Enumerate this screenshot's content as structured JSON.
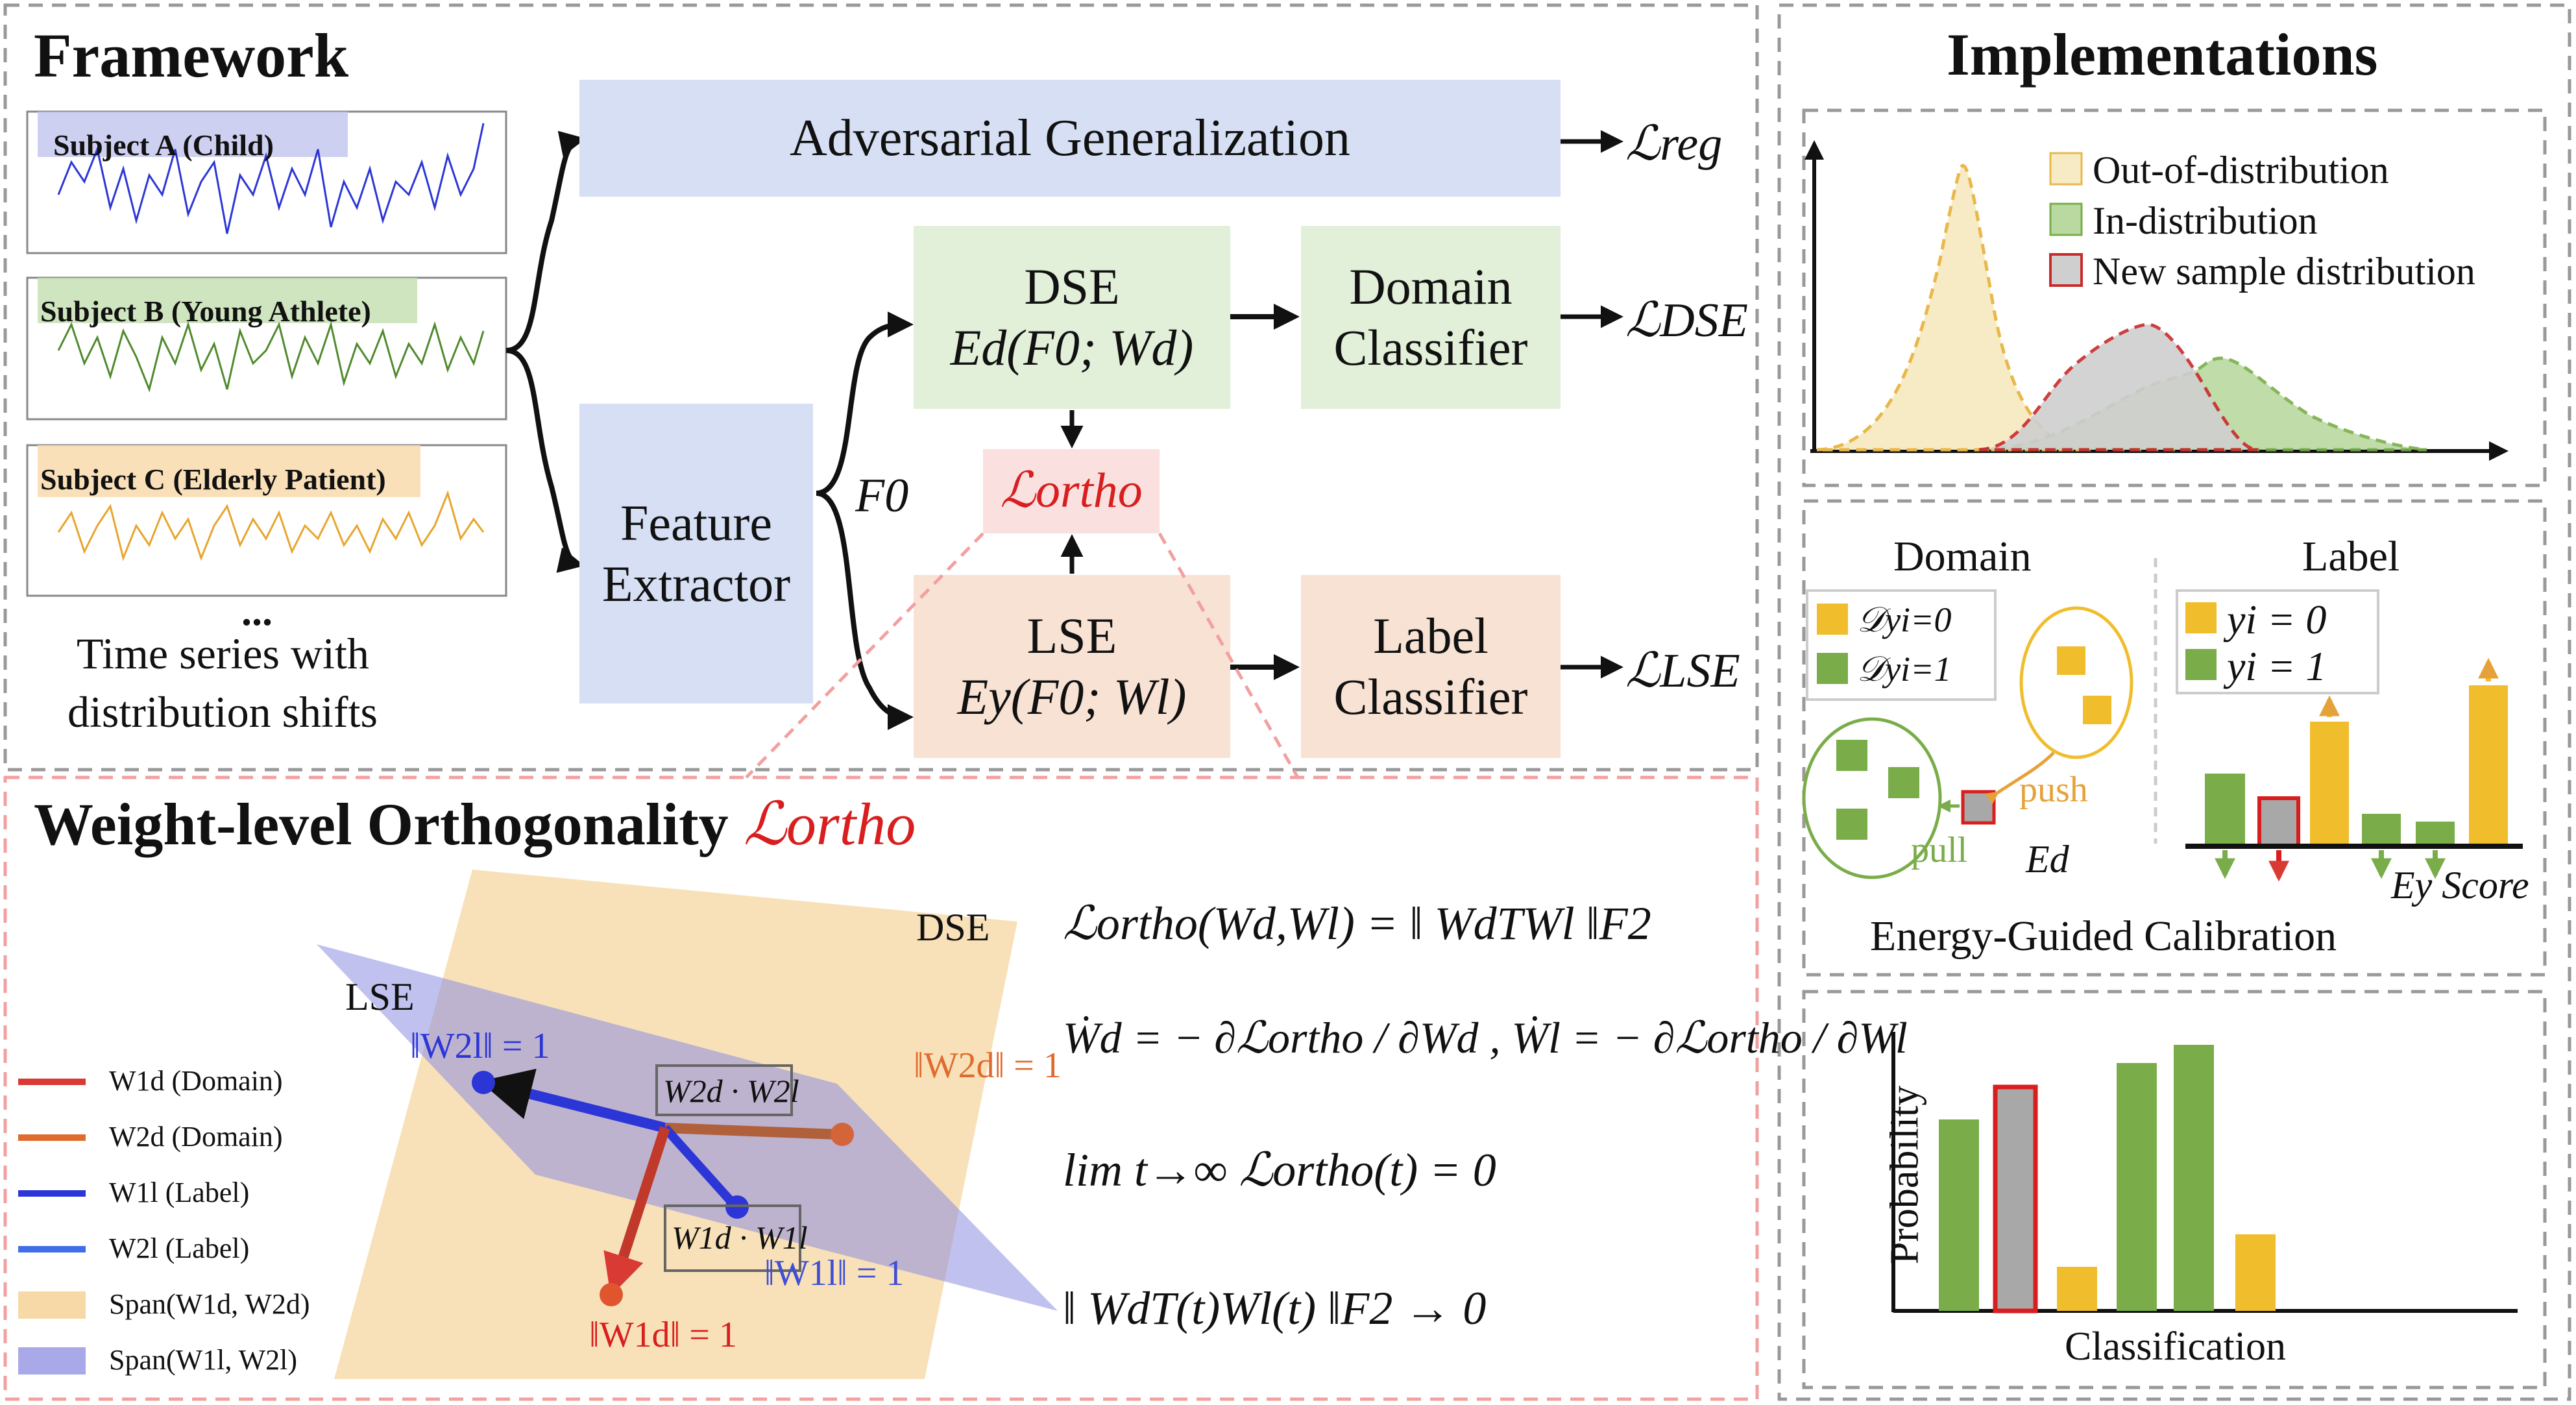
{
  "framework": {
    "title": "Framework",
    "subjects": [
      "Subject A (Child)",
      "Subject B (Young Athlete)",
      "Subject C (Elderly Patient)"
    ],
    "ellipsis": "...",
    "ts_caption_1": "Time series with",
    "ts_caption_2": "distribution shifts",
    "adversarial": "Adversarial Generalization",
    "loss_reg": "ℒreg",
    "feature_extractor_1": "Feature",
    "feature_extractor_2": "Extractor",
    "f0": "F0",
    "dse_title": "DSE",
    "dse_formula": "Ed(F0; Wd)",
    "lse_title": "LSE",
    "lse_formula": "Ey(F0; Wl)",
    "domain_classifier_1": "Domain",
    "domain_classifier_2": "Classifier",
    "label_classifier_1": "Label",
    "label_classifier_2": "Classifier",
    "loss_dse": "ℒDSE",
    "loss_lse": "ℒLSE",
    "loss_ortho": "ℒortho"
  },
  "orthogonality": {
    "title": "Weight-level Orthogonality",
    "title_loss": "ℒortho",
    "plane_dse": "DSE",
    "plane_lse": "LSE",
    "norm_w2l": "‖W2l‖ = 1",
    "norm_w2d": "‖W2d‖ = 1",
    "norm_w1l": "‖W1l‖ = 1",
    "norm_w1d": "‖W1d‖ = 1",
    "dot_upper": "W2d · W2l",
    "dot_lower": "W1d · W1l",
    "legend": [
      {
        "text": "W1d (Domain)",
        "color": "#d93a34"
      },
      {
        "text": "W2d (Domain)",
        "color": "#e06b2e"
      },
      {
        "text": "W1l (Label)",
        "color": "#2c36d6"
      },
      {
        "text": "W2l (Label)",
        "color": "#3f6ee8"
      },
      {
        "text": "Span(W1d, W2d)",
        "color": "#f6d9a6"
      },
      {
        "text": "Span(W1l, W2l)",
        "color": "#a9a8e8"
      }
    ],
    "eq1": "ℒortho(Wd,Wl) = ‖ WdTWl ‖F2",
    "eq2": "Ẇd = − ∂ℒortho / ∂Wd ,  Ẇl = − ∂ℒortho / ∂Wl",
    "eq3": "lim t→∞ ℒortho(t) = 0",
    "eq4": "‖ WdT(t)Wl(t) ‖F2 → 0"
  },
  "implementations": {
    "title": "Implementations",
    "dist_legend": [
      {
        "text": "Out-of-distribution",
        "color": "#f7ebc6"
      },
      {
        "text": "In-distribution",
        "color": "#b9d9a0"
      },
      {
        "text": "New sample distribution",
        "color": "#cfcfcf"
      }
    ],
    "domain_title": "Domain",
    "label_title": "Label",
    "domain_legend": [
      "𝒟yi=0",
      "𝒟yi=1"
    ],
    "label_legend": [
      "yi = 0",
      "yi = 1"
    ],
    "push": "push",
    "pull": "pull",
    "ed": "Ed",
    "ey_score": "Ey Score",
    "calibration": "Energy-Guided Calibration",
    "prob_ylabel": "Probability",
    "prob_xlabel": "Classification"
  },
  "colors": {
    "blue_box": "#d6dff3",
    "green_box": "#e2efd9",
    "peach_box": "#f7e2d4",
    "ortho_box": "#fbe0e0",
    "red_accent": "#d81e1e",
    "green_bar": "#7aad4a",
    "yellow_bar": "#f0bd2c",
    "gray_bar": "#a8a8a8"
  }
}
